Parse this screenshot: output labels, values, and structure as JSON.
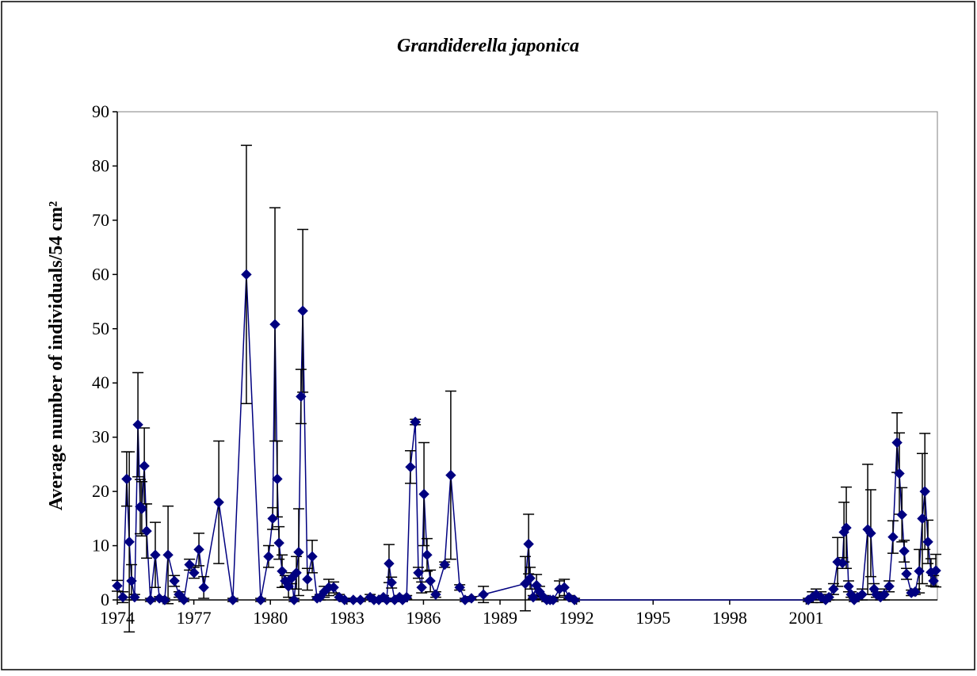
{
  "chart_data": {
    "type": "line",
    "title": "Grandiderella japonica",
    "y_label": "Average number of individuals/54 cm²",
    "x": [
      1974.0,
      1974.22,
      1974.37,
      1974.47,
      1974.56,
      1974.68,
      1974.81,
      1974.9,
      1974.96,
      1975.06,
      1975.15,
      1975.3,
      1975.49,
      1975.65,
      1975.86,
      1975.99,
      1976.24,
      1976.42,
      1976.61,
      1976.83,
      1977.01,
      1977.2,
      1977.39,
      1977.98,
      1978.53,
      1979.06,
      1979.62,
      1979.93,
      1980.09,
      1980.18,
      1980.27,
      1980.34,
      1980.46,
      1980.58,
      1980.71,
      1980.83,
      1980.93,
      1981.02,
      1981.11,
      1981.2,
      1981.27,
      1981.45,
      1981.64,
      1981.83,
      1981.95,
      1982.11,
      1982.29,
      1982.48,
      1982.7,
      1982.91,
      1983.25,
      1983.53,
      1983.91,
      1984.06,
      1984.25,
      1984.43,
      1984.56,
      1984.65,
      1984.75,
      1984.87,
      1985.06,
      1985.18,
      1985.34,
      1985.49,
      1985.68,
      1985.8,
      1985.93,
      1986.02,
      1986.14,
      1986.27,
      1986.48,
      1986.83,
      1987.07,
      1987.42,
      1987.63,
      1987.88,
      1988.35,
      1989.99,
      1990.12,
      1990.18,
      1990.3,
      1990.43,
      1990.55,
      1990.71,
      1990.83,
      1990.96,
      1991.08,
      1991.33,
      1991.52,
      1991.7,
      1991.92,
      2001.08,
      2001.24,
      2001.39,
      2001.58,
      2001.76,
      2001.89,
      2002.07,
      2002.23,
      2002.42,
      2002.48,
      2002.57,
      2002.66,
      2002.76,
      2002.88,
      2003.01,
      2003.19,
      2003.41,
      2003.53,
      2003.66,
      2003.75,
      2003.91,
      2004.06,
      2004.25,
      2004.4,
      2004.56,
      2004.65,
      2004.75,
      2004.84,
      2004.93,
      2005.12,
      2005.27,
      2005.43,
      2005.55,
      2005.65,
      2005.77,
      2005.89,
      2005.99,
      2006.08
    ],
    "series": [
      {
        "color": "#000080",
        "values": [
          2.6,
          0.5,
          22.3,
          10.7,
          3.5,
          0.5,
          32.3,
          17.2,
          16.8,
          24.7,
          12.7,
          0,
          8.3,
          0.3,
          0,
          8.3,
          3.5,
          1,
          0,
          6.5,
          5,
          9.3,
          2.3,
          18,
          0,
          60,
          0,
          8,
          15,
          50.8,
          22.3,
          10.5,
          5.3,
          3.5,
          2.5,
          4,
          0,
          5,
          8.8,
          37.5,
          53.3,
          3.8,
          8,
          0.3,
          0.5,
          1.5,
          2.3,
          2.3,
          0.5,
          0,
          0,
          0,
          0.5,
          0,
          0,
          0.5,
          0,
          6.7,
          3.2,
          0,
          0.5,
          0,
          0.5,
          24.5,
          32.8,
          5,
          2.3,
          19.5,
          8.3,
          3.5,
          1,
          6.5,
          23,
          2.3,
          0,
          0.3,
          1,
          3,
          10.3,
          4,
          0.5,
          2.7,
          1.5,
          0.5,
          0,
          0,
          0,
          2,
          2.3,
          0.5,
          0,
          0,
          0.5,
          1,
          0.5,
          0,
          0.5,
          2,
          7,
          6.8,
          12.5,
          13.3,
          2.5,
          1,
          0,
          0.5,
          1,
          13,
          12.3,
          2,
          1,
          0.5,
          1,
          2.5,
          11.6,
          29,
          23.3,
          15.7,
          9,
          4.8,
          1.3,
          1.5,
          5.3,
          15,
          20,
          10.7,
          5.1,
          3.5,
          5.4
        ],
        "errors": [
          1,
          1,
          5,
          16.6,
          3,
          0.5,
          9.6,
          5,
          5,
          7,
          5,
          0.3,
          6,
          0.3,
          0.3,
          9,
          1,
          0.5,
          0.3,
          1,
          1,
          3,
          2,
          11.3,
          0.3,
          23.8,
          0.3,
          2,
          2,
          21.5,
          7,
          3,
          3,
          1,
          2,
          1,
          0.3,
          3,
          8,
          5,
          15,
          2,
          3,
          0.3,
          0.5,
          1,
          1.5,
          1,
          0.5,
          0.3,
          0.3,
          0.3,
          0.5,
          0.3,
          0.3,
          0.3,
          0.3,
          3.5,
          1,
          0.3,
          0.3,
          0.3,
          0.3,
          3,
          0.5,
          1,
          1,
          9.5,
          3,
          2,
          0.5,
          0.5,
          15.5,
          0.5,
          0.3,
          0.3,
          1.5,
          5,
          5.5,
          2,
          0.3,
          2,
          1,
          0.3,
          0.3,
          0.3,
          0.3,
          1.5,
          1.5,
          0.3,
          0.3,
          0.3,
          1,
          1,
          1,
          0.3,
          0.5,
          1,
          4.5,
          1,
          5.5,
          7.5,
          1,
          0.5,
          0.3,
          0.5,
          1,
          12,
          8,
          1,
          0.5,
          0.5,
          1,
          1,
          3,
          5.5,
          7.5,
          5,
          2,
          1,
          0.5,
          0.5,
          4,
          12,
          10.7,
          4,
          2.5,
          1,
          3
        ]
      }
    ],
    "xlim": [
      1974,
      2006.14
    ],
    "xticks": [
      1974,
      1977,
      1980,
      1983,
      1986,
      1989,
      1992,
      1995,
      1998,
      2001
    ],
    "ylim": [
      0,
      90
    ],
    "yticks": [
      0,
      10,
      20,
      30,
      40,
      50,
      60,
      70,
      80,
      90
    ],
    "grid": false
  }
}
